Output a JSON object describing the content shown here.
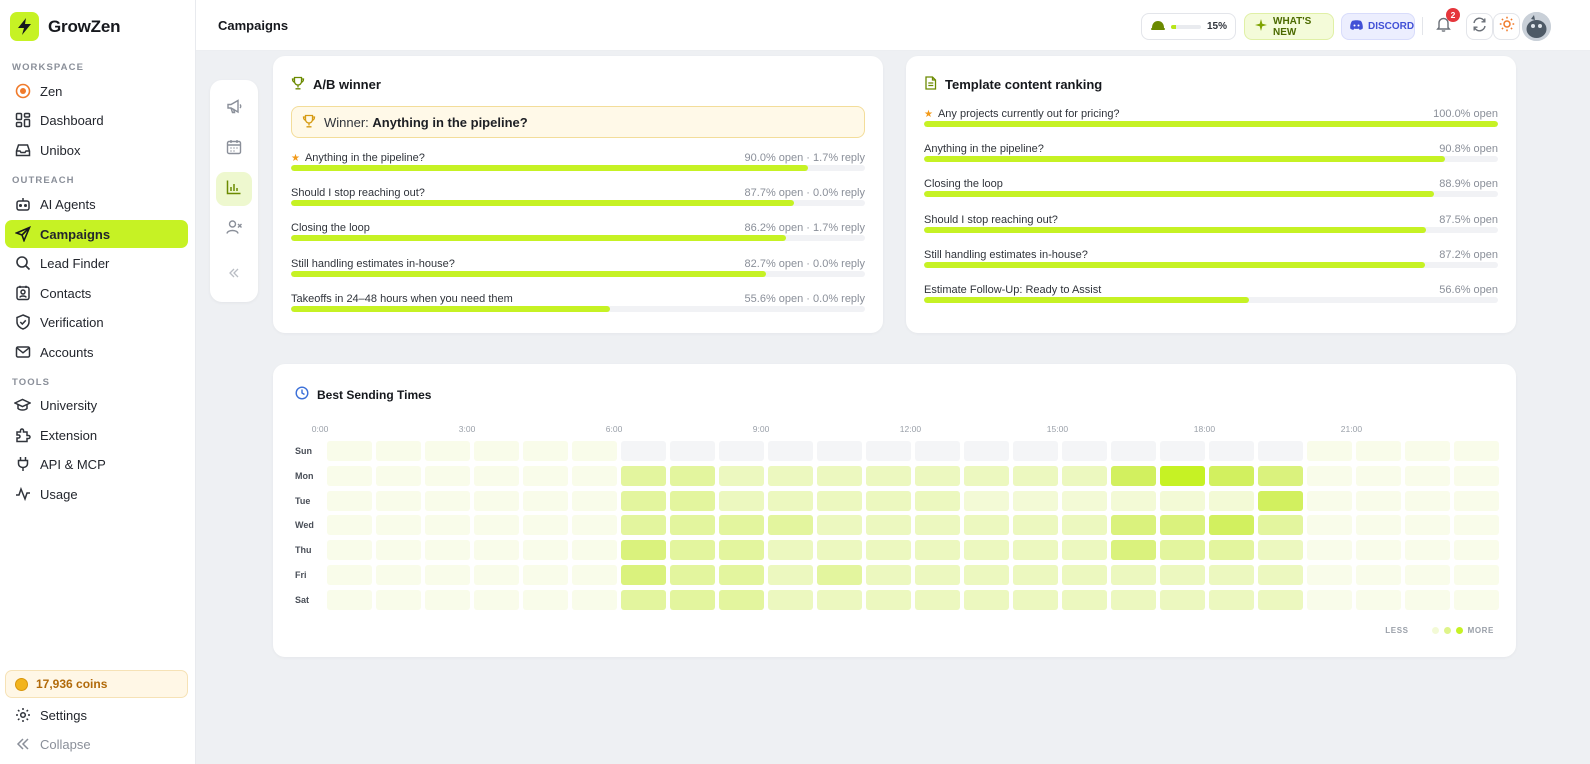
{
  "brand": {
    "name": "GrowZen"
  },
  "sidebar": {
    "sections": [
      {
        "label": "WORKSPACE"
      },
      {
        "label": "OUTREACH"
      },
      {
        "label": "TOOLS"
      }
    ],
    "items": [
      {
        "label": "Zen",
        "icon": "zen-icon"
      },
      {
        "label": "Dashboard",
        "icon": "dashboard-icon"
      },
      {
        "label": "Unibox",
        "icon": "inbox-icon"
      },
      {
        "label": "AI Agents",
        "icon": "robot-icon"
      },
      {
        "label": "Campaigns",
        "icon": "send-icon",
        "active": true
      },
      {
        "label": "Lead Finder",
        "icon": "search-icon"
      },
      {
        "label": "Contacts",
        "icon": "contacts-icon"
      },
      {
        "label": "Verification",
        "icon": "shield-check-icon"
      },
      {
        "label": "Accounts",
        "icon": "mail-icon"
      },
      {
        "label": "University",
        "icon": "graduation-cap-icon"
      },
      {
        "label": "Extension",
        "icon": "puzzle-icon"
      },
      {
        "label": "API & MCP",
        "icon": "plug-icon"
      },
      {
        "label": "Usage",
        "icon": "activity-icon"
      }
    ],
    "coins": "17,936 coins",
    "settings": "Settings",
    "collapse": "Collapse"
  },
  "header": {
    "title": "Campaigns",
    "progress": {
      "value": 0.15,
      "label": "15%"
    },
    "whats_new": "WHAT'S NEW",
    "discord": "DISCORD",
    "notifications_count": "2"
  },
  "ab_winner": {
    "title": "A/B winner",
    "winner_prefix": "Winner:",
    "winner_name": "Anything in the pipeline?",
    "rows": [
      {
        "label": "Anything in the pipeline?",
        "stat": "90.0% open · 1.7% reply",
        "open": 0.9,
        "star": true
      },
      {
        "label": "Should I stop reaching out?",
        "stat": "87.7% open · 0.0% reply",
        "open": 0.877
      },
      {
        "label": "Closing the loop",
        "stat": "86.2% open · 1.7% reply",
        "open": 0.862
      },
      {
        "label": "Still handling estimates in-house?",
        "stat": "82.7% open · 0.0% reply",
        "open": 0.827
      },
      {
        "label": "Takeoffs in 24–48 hours when you need them",
        "stat": "55.6% open · 0.0% reply",
        "open": 0.556
      }
    ]
  },
  "template_ranking": {
    "title": "Template content ranking",
    "rows": [
      {
        "label": "Any projects currently out for pricing?",
        "stat": "100.0% open",
        "open": 1.0,
        "star": true
      },
      {
        "label": "Anything in the pipeline?",
        "stat": "90.8% open",
        "open": 0.908
      },
      {
        "label": "Closing the loop",
        "stat": "88.9% open",
        "open": 0.889
      },
      {
        "label": "Should I stop reaching out?",
        "stat": "87.5% open",
        "open": 0.875
      },
      {
        "label": "Still handling estimates in-house?",
        "stat": "87.2% open",
        "open": 0.872
      },
      {
        "label": "Estimate Follow-Up: Ready to Assist",
        "stat": "56.6% open",
        "open": 0.566
      }
    ]
  },
  "best_times": {
    "title": "Best Sending Times",
    "hour_labels": [
      {
        "hour": 3,
        "label": "0:00"
      },
      {
        "hour": 6,
        "label": "3:00"
      },
      {
        "hour": 9,
        "label": "6:00"
      },
      {
        "hour": 12,
        "label": "9:00"
      },
      {
        "hour": 15,
        "label": "12:00"
      },
      {
        "hour": 18,
        "label": "15:00"
      },
      {
        "hour": 21,
        "label": "18:00"
      },
      {
        "hour": 24,
        "label": "21:00"
      }
    ],
    "days": [
      "Sun",
      "Mon",
      "Tue",
      "Wed",
      "Thu",
      "Fri",
      "Sat"
    ],
    "levels": [
      [
        1,
        1,
        1,
        1,
        1,
        1,
        0,
        0,
        0,
        0,
        0,
        0,
        0,
        0,
        0,
        0,
        0,
        0,
        0,
        0,
        1,
        1,
        1,
        1
      ],
      [
        1,
        1,
        1,
        1,
        1,
        1,
        4,
        4,
        3,
        3,
        3,
        3,
        3,
        3,
        3,
        3,
        6,
        9,
        6,
        5,
        1,
        1,
        1,
        1
      ],
      [
        1,
        1,
        1,
        1,
        1,
        1,
        4,
        4,
        3,
        3,
        3,
        3,
        3,
        2,
        2,
        2,
        2,
        2,
        2,
        6,
        1,
        1,
        1,
        1
      ],
      [
        1,
        1,
        1,
        1,
        1,
        1,
        4,
        4,
        4,
        4,
        3,
        3,
        3,
        3,
        3,
        3,
        5,
        5,
        6,
        4,
        1,
        1,
        1,
        1
      ],
      [
        1,
        1,
        1,
        1,
        1,
        1,
        5,
        4,
        4,
        3,
        3,
        3,
        3,
        3,
        3,
        3,
        5,
        4,
        4,
        3,
        1,
        1,
        1,
        1
      ],
      [
        1,
        1,
        1,
        1,
        1,
        1,
        5,
        4,
        4,
        3,
        4,
        3,
        3,
        3,
        3,
        3,
        3,
        3,
        3,
        3,
        1,
        1,
        1,
        1
      ],
      [
        1,
        1,
        1,
        1,
        1,
        1,
        4,
        4,
        4,
        3,
        3,
        3,
        3,
        3,
        3,
        3,
        3,
        3,
        3,
        3,
        1,
        1,
        1,
        1
      ]
    ],
    "legend_less": "LESS",
    "legend_more": "MORE"
  },
  "colors": {
    "accent": "#c6f224",
    "heat_scale": [
      "#f4f5f7",
      "#f9fcea",
      "#f3fad6",
      "#ecf8bf",
      "#e3f59e",
      "#daf27d",
      "#d2f05f",
      "#cdee46",
      "#c9ed33",
      "#c6f224"
    ]
  }
}
